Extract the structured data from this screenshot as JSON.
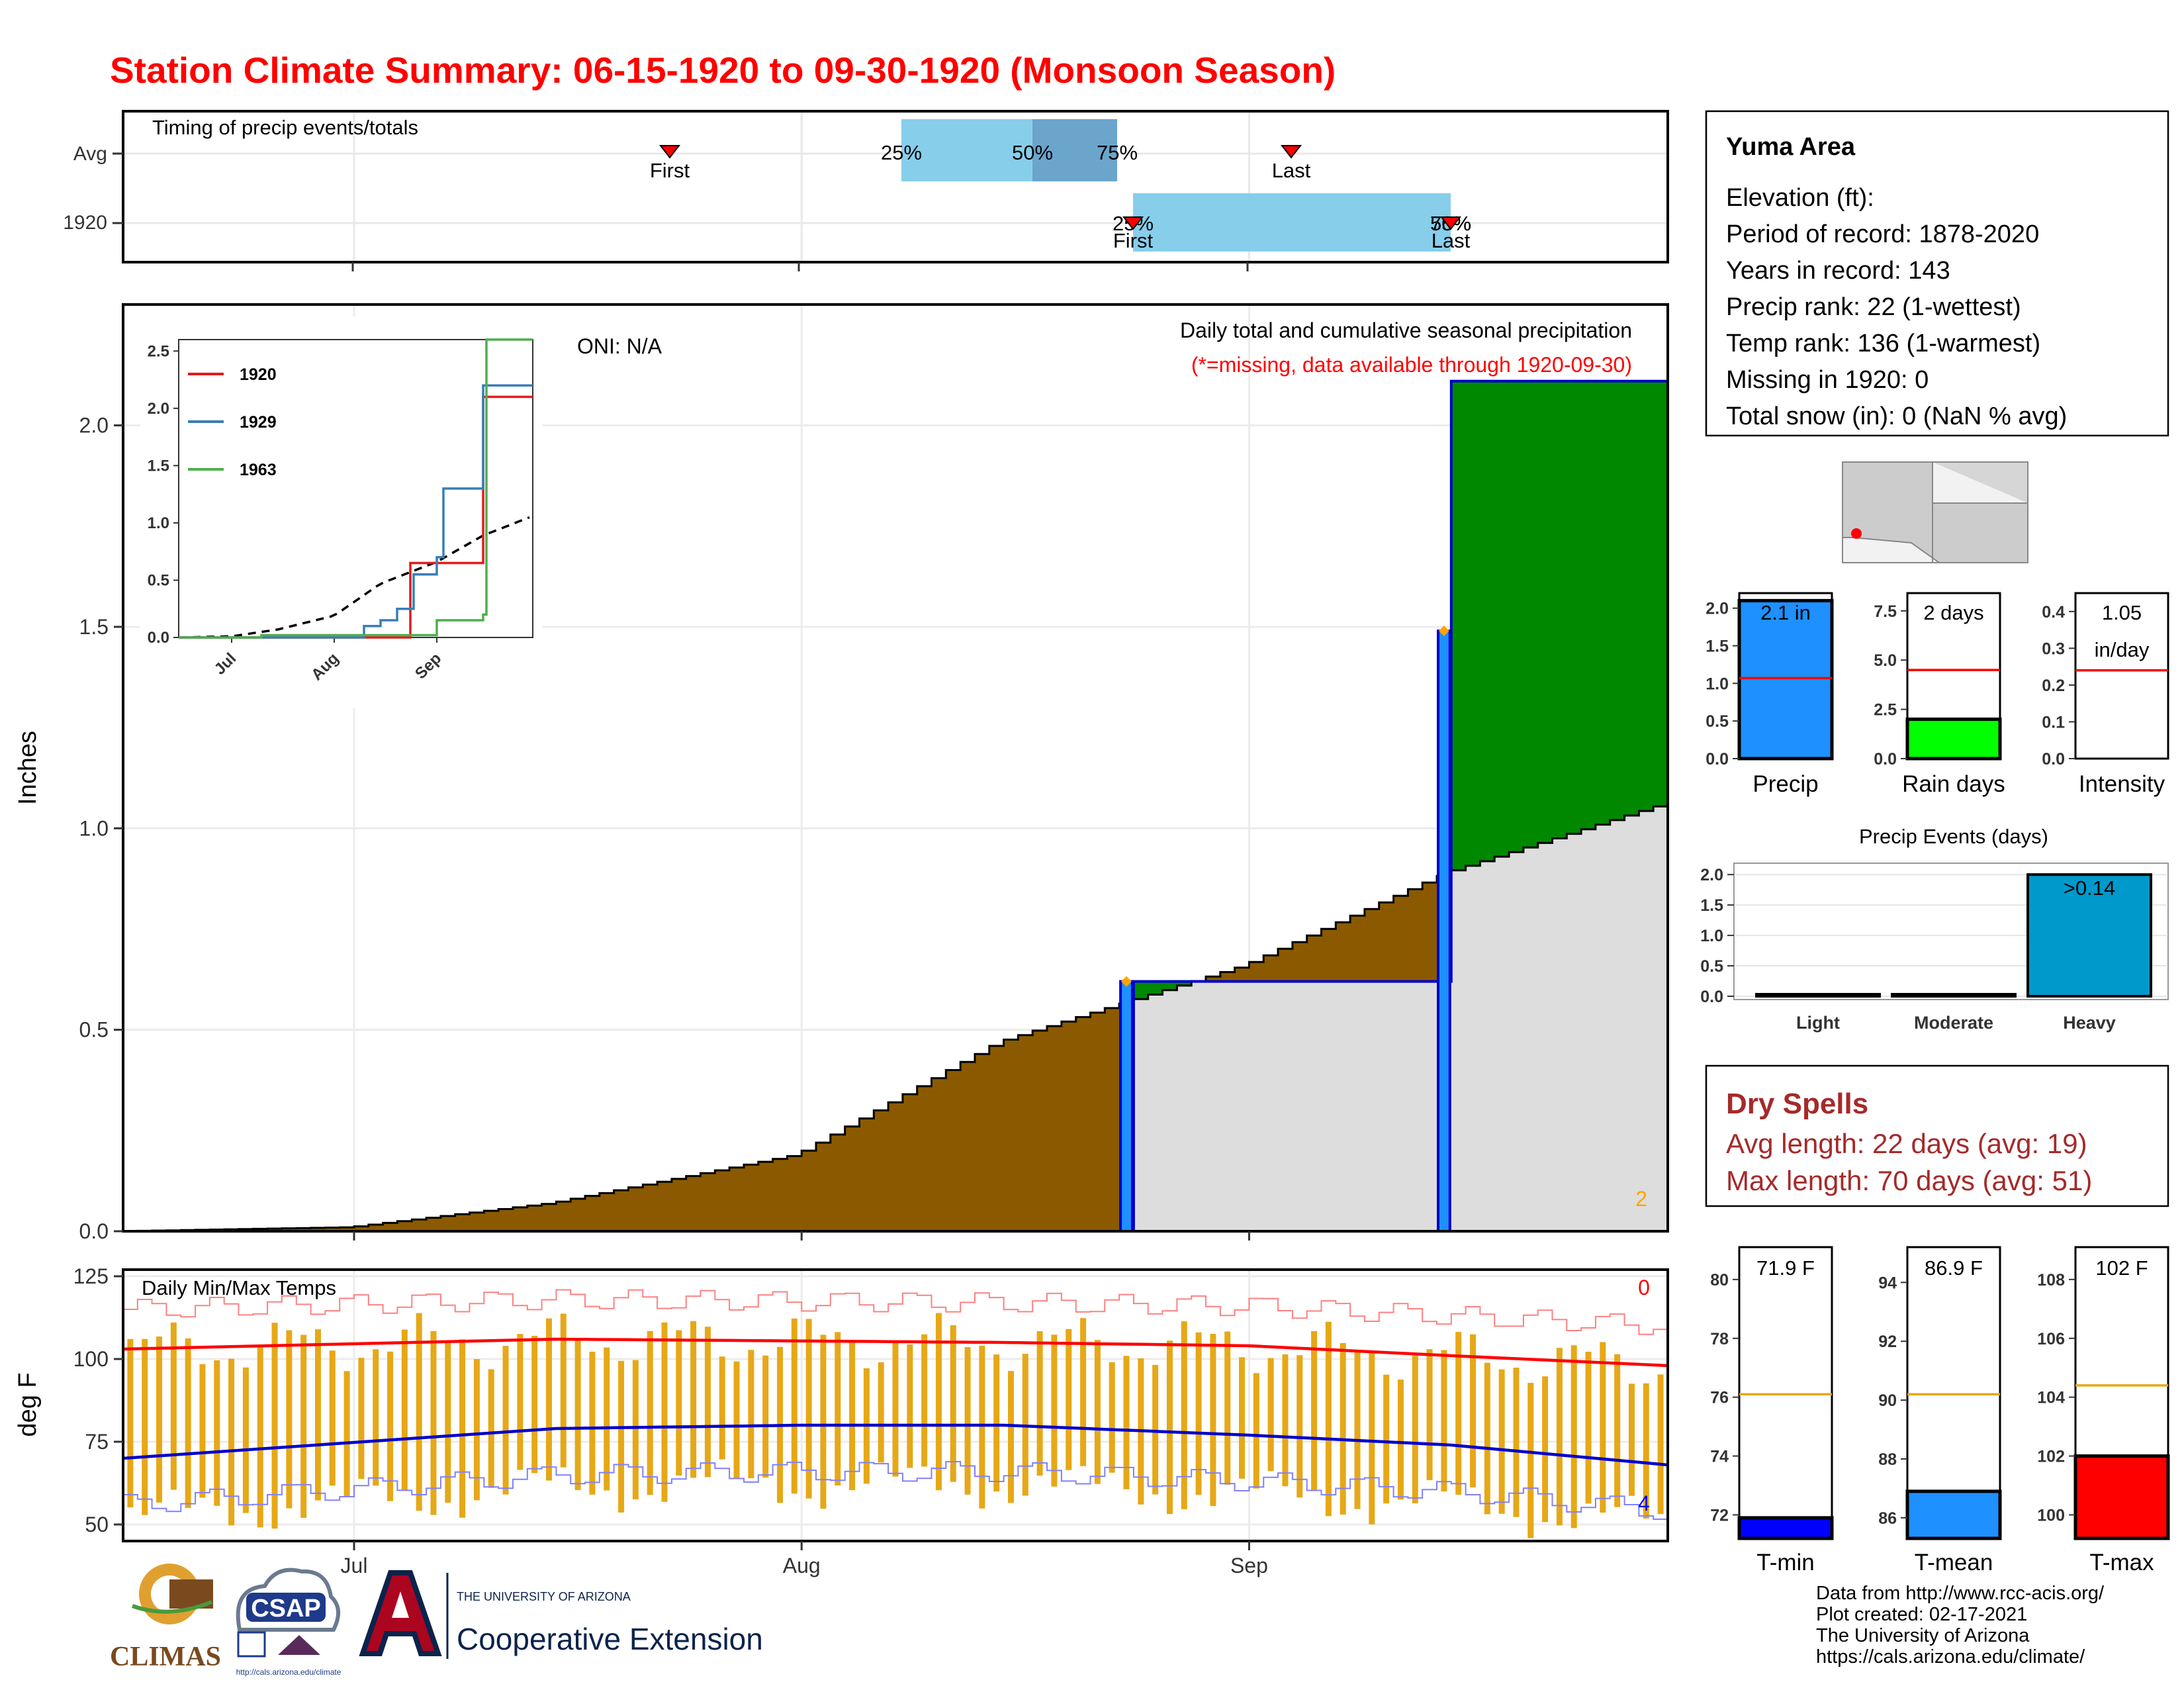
{
  "title": "Station Climate Summary: 06-15-1920 to 09-30-1920 (Monsoon Season)",
  "colors": {
    "title": "#ff0000",
    "observed_precip": "#8b5a00",
    "above_normal": "#008800",
    "normal_precip": "#dddddd",
    "event_bar": "#1e90ff",
    "event_outline": "#0000cd",
    "tmax_normal": "#ff0000",
    "tmin_normal": "#0000cd",
    "temp_range": "#e6a817",
    "timing_light": "#87ceeb",
    "timing_dark": "#6ba5cc",
    "dry_spells": "#a52a2a",
    "ref_line": "#e6a817"
  },
  "timing_panel": {
    "label": "Timing of precip events/totals",
    "rows": [
      {
        "label": "Avg",
        "first": "First",
        "last": "Last",
        "p25": "25%",
        "p50": "50%",
        "p75": "75%"
      },
      {
        "label": "1920",
        "first": "First",
        "last": "Last",
        "p25": "25%",
        "p50": "50%",
        "p75": "75%"
      }
    ]
  },
  "main_panel": {
    "oni": "ONI: N/A",
    "subtitle": "Daily total and cumulative seasonal precipitation",
    "missing_note": "(*=missing, data available through 1920-09-30)",
    "y_label": "Inches",
    "y_ticks": [
      "0.0",
      "0.5",
      "1.0",
      "1.5",
      "2.0"
    ],
    "count": "2"
  },
  "inset": {
    "y_ticks": [
      "0.0",
      "0.5",
      "1.0",
      "1.5",
      "2.0",
      "2.5"
    ],
    "x_ticks": [
      "Jul",
      "Aug",
      "Sep"
    ],
    "legend": [
      {
        "name": "1920",
        "color": "#e41a1c"
      },
      {
        "name": "1929",
        "color": "#377eb8"
      },
      {
        "name": "1963",
        "color": "#4daf4a"
      }
    ]
  },
  "temp_panel": {
    "label": "Daily Min/Max Temps",
    "y_label": "deg F",
    "y_ticks": [
      "50",
      "75",
      "100",
      "125"
    ],
    "count_max": "0",
    "count_min": "4",
    "x_ticks": [
      "Jul",
      "Aug",
      "Sep"
    ]
  },
  "info_box": {
    "station": "Yuma Area",
    "lines": [
      "Elevation (ft):",
      "Period of record: 1878-2020",
      "Years in record: 143",
      "Precip rank: 22 (1-wettest)",
      "Temp rank: 136 (1-warmest)",
      "Missing in 1920: 0",
      "Total snow (in): 0 (NaN % avg)"
    ]
  },
  "mini_bars": [
    {
      "label": "Precip",
      "value_text": "2.1 in",
      "value": 2.1,
      "normal": 1.07,
      "ymax": 2.2,
      "ticks": [
        "0.0",
        "0.5",
        "1.0",
        "1.5",
        "2.0"
      ],
      "tick_vals": [
        0,
        0.5,
        1.0,
        1.5,
        2.0
      ],
      "fill": "#1e90ff"
    },
    {
      "label": "Rain days",
      "value_text": "2 days",
      "value": 2,
      "normal": 4.5,
      "ymax": 8.4,
      "ticks": [
        "0.0",
        "2.5",
        "5.0",
        "7.5"
      ],
      "tick_vals": [
        0,
        2.5,
        5.0,
        7.5
      ],
      "fill": "#00ff00"
    },
    {
      "label": "Intensity",
      "value_text": "1.05",
      "value_text2": "in/day",
      "value": 1.05,
      "normal": 0.24,
      "ymax": 0.45,
      "ticks": [
        "0.0",
        "0.1",
        "0.2",
        "0.3",
        "0.4"
      ],
      "tick_vals": [
        0,
        0.1,
        0.2,
        0.3,
        0.4
      ],
      "fill": "#ffffff"
    }
  ],
  "events_panel": {
    "title": "Precip Events (days)",
    "categories": [
      "Light",
      "Moderate",
      "Heavy"
    ],
    "values": [
      0,
      0,
      2
    ],
    "bar_label": ">0.14",
    "y_ticks": [
      "0.0",
      "0.5",
      "1.0",
      "1.5",
      "2.0"
    ]
  },
  "dry_spells": {
    "title": "Dry Spells",
    "avg": "Avg length: 22 days (avg: 19)",
    "max": "Max length: 70 days (avg: 51)"
  },
  "temp_bars": [
    {
      "label": "T-min",
      "value_text": "71.9 F",
      "value": 71.9,
      "normal": 76.1,
      "ymin": 71.2,
      "ymax": 81.1,
      "ticks": [
        "72",
        "74",
        "76",
        "78",
        "80"
      ],
      "tick_vals": [
        72,
        74,
        76,
        78,
        80
      ],
      "fill": "#0000ff"
    },
    {
      "label": "T-mean",
      "value_text": "86.9 F",
      "value": 86.9,
      "normal": 90.2,
      "ymin": 85.3,
      "ymax": 95.2,
      "ticks": [
        "86",
        "88",
        "90",
        "92",
        "94"
      ],
      "tick_vals": [
        86,
        88,
        90,
        92,
        94
      ],
      "fill": "#1e90ff"
    },
    {
      "label": "T-max",
      "value_text": "102 F",
      "value": 102,
      "normal": 104.4,
      "ymin": 99.2,
      "ymax": 109.1,
      "ticks": [
        "100",
        "102",
        "104",
        "106",
        "108"
      ],
      "tick_vals": [
        100,
        102,
        104,
        106,
        108
      ],
      "fill": "#ff0000"
    }
  ],
  "footer": {
    "lines": [
      "Data from http://www.rcc-acis.org/",
      "Plot created: 02-17-2021",
      "The University of Arizona",
      "https://cals.arizona.edu/climate/"
    ],
    "logos": {
      "climas": "CLIMAS",
      "csap": "CSAP",
      "csap_url": "http://cals.arizona.edu/climate",
      "ua_line1": "THE UNIVERSITY OF ARIZONA",
      "ua_line2": "Cooperative Extension"
    }
  },
  "chart_data": [
    {
      "type": "area",
      "title": "Daily total and cumulative seasonal precipitation",
      "ylabel": "Inches",
      "x_range": [
        "1920-06-15",
        "1920-09-30"
      ],
      "ylim": [
        0,
        2.3
      ],
      "series": [
        {
          "name": "1920",
          "x": [
            "1920-06-15",
            "1920-08-23",
            "1920-08-24",
            "1920-09-14",
            "1920-09-15",
            "1920-09-30"
          ],
          "y": [
            0,
            0,
            0.62,
            0.62,
            2.11,
            2.11
          ]
        }
      ],
      "normal": {
        "x": [
          "1920-06-15",
          "1920-07-01",
          "1920-07-15",
          "1920-08-01",
          "1920-08-15",
          "1920-09-01",
          "1920-09-15",
          "1920-09-30"
        ],
        "y": [
          0,
          0.01,
          0.07,
          0.19,
          0.47,
          0.66,
          0.89,
          1.06
        ]
      },
      "daily_events": [
        {
          "date": "1920-08-23",
          "inches": 0.62
        },
        {
          "date": "1920-09-14",
          "inches": 1.49
        }
      ]
    },
    {
      "type": "line",
      "title": "",
      "x_ticks": [
        "Jul",
        "Aug",
        "Sep"
      ],
      "ylim": [
        0,
        2.5
      ],
      "series": [
        {
          "name": "1920",
          "x": [
            "1920-06-15",
            "1920-08-23",
            "1920-08-24",
            "1920-09-14",
            "1920-09-15",
            "1920-09-30"
          ],
          "y": [
            0,
            0,
            0.65,
            0.65,
            2.1,
            2.1
          ]
        },
        {
          "name": "1929",
          "x": [
            "1920-06-15",
            "1920-08-01",
            "1920-08-10",
            "1920-08-15",
            "1920-08-20",
            "1920-08-25",
            "1920-09-01",
            "1920-09-03",
            "1920-09-15",
            "1920-09-30"
          ],
          "y": [
            0,
            0,
            0.1,
            0.15,
            0.25,
            0.55,
            0.7,
            1.3,
            2.2,
            2.2
          ]
        },
        {
          "name": "1963",
          "x": [
            "1920-06-15",
            "1920-07-10",
            "1920-08-01",
            "1920-08-26",
            "1920-09-01",
            "1920-09-15",
            "1920-09-16",
            "1920-09-30"
          ],
          "y": [
            0,
            0.02,
            0.02,
            0.02,
            0.15,
            0.2,
            2.6,
            2.6
          ]
        }
      ]
    },
    {
      "type": "bar",
      "title": "Daily Min/Max Temps",
      "ylabel": "deg F",
      "ylim": [
        45,
        127
      ],
      "tmax_normal": {
        "x": [
          "1920-06-15",
          "1920-07-15",
          "1920-08-15",
          "1920-09-01",
          "1920-09-15",
          "1920-09-30"
        ],
        "y": [
          103,
          106,
          105,
          104,
          101,
          98
        ]
      },
      "tmin_normal": {
        "x": [
          "1920-06-15",
          "1920-07-15",
          "1920-08-01",
          "1920-08-15",
          "1920-09-01",
          "1920-09-15",
          "1920-09-30"
        ],
        "y": [
          70,
          79,
          80,
          80,
          77,
          74,
          68
        ]
      }
    },
    {
      "type": "bar",
      "title": "Precip Events (days)",
      "categories": [
        "Light",
        "Moderate",
        "Heavy"
      ],
      "values": [
        0,
        0,
        2
      ]
    }
  ]
}
